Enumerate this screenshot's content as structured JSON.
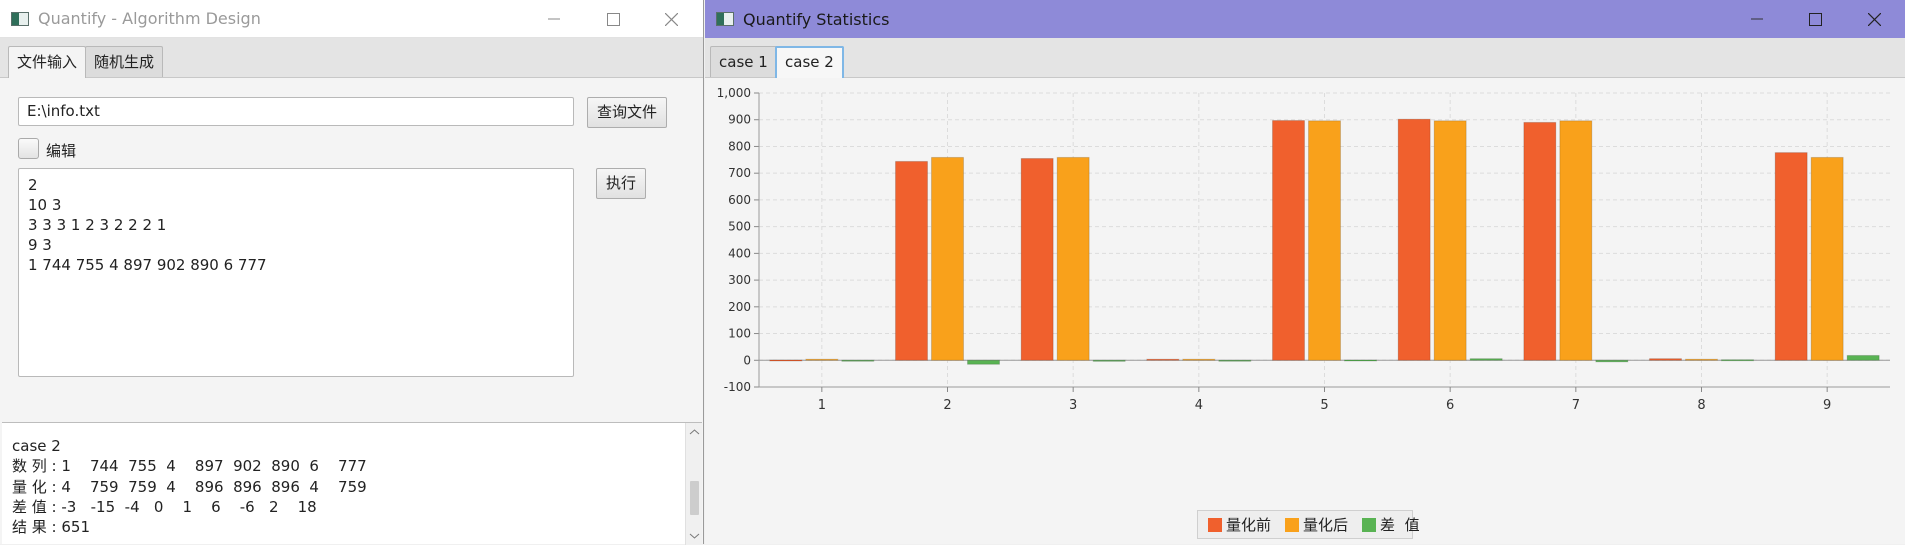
{
  "window1": {
    "title": "Quantify - Algorithm Design",
    "tabs": [
      "文件输入",
      "随机生成"
    ],
    "file_path": "E:\\info.txt",
    "query_button": "查询文件",
    "edit_label": "编辑",
    "execute_button": "执行",
    "input_lines": [
      "2",
      "10 3",
      "3 3 3 1 2 3 2 2 2 1",
      "9 3",
      "1 744 755 4 897 902 890 6 777"
    ],
    "output_lines": [
      "case 2",
      "数 列 : 1    744  755  4    897  902  890  6    777",
      "量 化 : 4    759  759  4    896  896  896  4    759",
      "差 值 : -3   -15  -4   0    1    6    -6   2    18",
      "结 果 : 651"
    ]
  },
  "window2": {
    "title": "Quantify Statistics",
    "tabs": [
      "case 1",
      "case 2"
    ],
    "active_tab": "case 2"
  },
  "colors": {
    "series1": "#f0602d",
    "series2": "#f9a11b",
    "series3": "#59b353",
    "titlebar_active": "#8e8ad8"
  },
  "chart_data": {
    "type": "bar",
    "categories": [
      "1",
      "2",
      "3",
      "4",
      "5",
      "6",
      "7",
      "8",
      "9"
    ],
    "series": [
      {
        "name": "量化前",
        "values": [
          1,
          744,
          755,
          4,
          897,
          902,
          890,
          6,
          777
        ]
      },
      {
        "name": "量化后",
        "values": [
          4,
          759,
          759,
          4,
          896,
          896,
          896,
          4,
          759
        ]
      },
      {
        "name": "差  值",
        "values": [
          -3,
          -15,
          -4,
          0,
          1,
          6,
          -6,
          2,
          18
        ]
      }
    ],
    "yticks": [
      "-100",
      "0",
      "100",
      "200",
      "300",
      "400",
      "500",
      "600",
      "700",
      "800",
      "900",
      "1,000"
    ],
    "ylim": [
      -100,
      1000
    ],
    "grid": true,
    "legend": "bottom-center"
  }
}
